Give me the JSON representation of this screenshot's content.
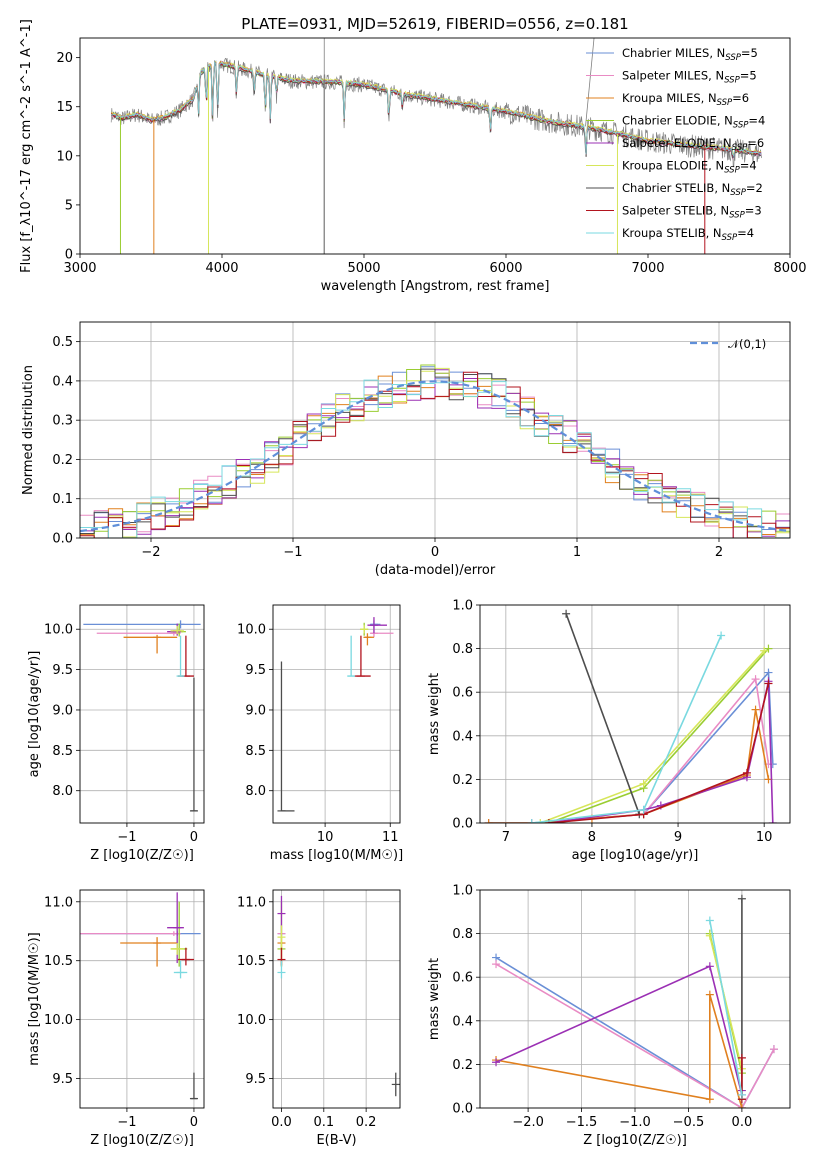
{
  "title": "PLATE=0931, MJD=52619, FIBERID=0556, z=0.181",
  "colors": {
    "Chabrier MILES": "#6a8fd6",
    "Salpeter MILES": "#e98bc4",
    "Kroupa MILES": "#e0801f",
    "Chabrier ELODIE": "#9acd32",
    "Salpeter ELODIE": "#9b30b4",
    "Kroupa ELODIE": "#d6e65a",
    "Chabrier STELIB": "#4d4d4d",
    "Salpeter STELIB": "#b2141e",
    "Kroupa STELIB": "#7ad9e0",
    "normal": "#5f8fd9",
    "data": "#808080"
  },
  "chart_data": [
    {
      "id": "spectrum",
      "type": "line",
      "xlabel": "wavelength [Angstrom, rest frame]",
      "ylabel": "Flux [f_λ10^-17 erg cm^-2 s^-1 A^-1]",
      "xlim": [
        3000,
        8000
      ],
      "ylim": [
        0,
        22
      ],
      "xticks": [
        3000,
        4000,
        5000,
        6000,
        7000,
        8000
      ],
      "yticks": [
        0,
        5,
        10,
        15,
        20
      ],
      "grid": false,
      "legend": "upper right",
      "legend_entries": [
        {
          "name": "Chabrier MILES",
          "ssp": "5"
        },
        {
          "name": "Salpeter MILES",
          "ssp": "5"
        },
        {
          "name": "Kroupa MILES",
          "ssp": "6"
        },
        {
          "name": "Chabrier ELODIE",
          "ssp": "4"
        },
        {
          "name": "Salpeter ELODIE",
          "ssp": "6"
        },
        {
          "name": "Kroupa ELODIE",
          "ssp": "4"
        },
        {
          "name": "Chabrier STELIB",
          "ssp": "2"
        },
        {
          "name": "Salpeter STELIB",
          "ssp": "3"
        },
        {
          "name": "Kroupa STELIB",
          "ssp": "4"
        }
      ],
      "continuum": {
        "x": [
          3220,
          3300,
          3400,
          3500,
          3600,
          3700,
          3800,
          3850,
          3950,
          4100,
          4300,
          4500,
          4800,
          5000,
          5300,
          5600,
          6000,
          6300,
          6600,
          6800,
          7000,
          7300,
          7600,
          7800
        ],
        "y": [
          14.2,
          13.8,
          14.2,
          13.6,
          13.9,
          14.6,
          15.8,
          18.5,
          19.5,
          19.0,
          18.2,
          17.6,
          17.5,
          17.2,
          16.2,
          15.5,
          14.5,
          13.5,
          12.8,
          12.2,
          11.5,
          11.0,
          10.6,
          10.2
        ]
      }
    },
    {
      "id": "residuals",
      "type": "histogram",
      "xlabel": "(data-model)/error",
      "ylabel": "Normed distribution",
      "xlim": [
        -2.5,
        2.5
      ],
      "ylim": [
        0,
        0.55
      ],
      "xticks": [
        -2,
        -1,
        0,
        1,
        2
      ],
      "yticks": [
        0.0,
        0.1,
        0.2,
        0.3,
        0.4,
        0.5
      ],
      "grid": true,
      "legend": "upper right",
      "normal_label": "𝒩(0,1)"
    },
    {
      "id": "age-vs-Z",
      "type": "scatter",
      "xlabel": "Z [log10(Z/Z☉)]",
      "ylabel": "age  [log10(age/yr)]",
      "xlim": [
        -1.7,
        0.15
      ],
      "ylim": [
        7.6,
        10.3
      ],
      "xticks": [
        -1,
        0
      ],
      "yticks": [
        8.0,
        8.5,
        9.0,
        9.5,
        10.0
      ],
      "grid": true,
      "points": [
        {
          "model": "Chabrier MILES",
          "x": -0.2,
          "y": 10.06,
          "xerr": [
            1.45,
            0.3
          ],
          "yerr": [
            0.05,
            0.05
          ]
        },
        {
          "model": "Salpeter MILES",
          "x": -0.3,
          "y": 9.95,
          "xerr": [
            1.15,
            0.1
          ],
          "yerr": [
            0.03,
            0.04
          ]
        },
        {
          "model": "Kroupa MILES",
          "x": -0.55,
          "y": 9.9,
          "xerr": [
            0.5,
            0.3
          ],
          "yerr": [
            0.2,
            0.03
          ]
        },
        {
          "model": "Chabrier ELODIE",
          "x": -0.22,
          "y": 9.97,
          "xerr": [
            0.12,
            0.1
          ],
          "yerr": [
            0.06,
            0.1
          ]
        },
        {
          "model": "Salpeter ELODIE",
          "x": -0.25,
          "y": 9.97,
          "xerr": [
            0.15,
            0.05
          ],
          "yerr": [
            0.05,
            0.1
          ]
        },
        {
          "model": "Kroupa ELODIE",
          "x": -0.25,
          "y": 9.98,
          "xerr": [
            0.1,
            0.1
          ],
          "yerr": [
            0.04,
            0.06
          ]
        },
        {
          "model": "Chabrier STELIB",
          "x": 0.0,
          "y": 7.75,
          "xerr": [
            0.05,
            0.05
          ],
          "yerr": [
            0.0,
            1.65
          ]
        },
        {
          "model": "Salpeter STELIB",
          "x": -0.12,
          "y": 9.42,
          "xerr": [
            0.12,
            0.12
          ],
          "yerr": [
            0.0,
            0.5
          ]
        },
        {
          "model": "Kroupa STELIB",
          "x": -0.2,
          "y": 9.42,
          "xerr": [
            0.04,
            0.04
          ],
          "yerr": [
            0.0,
            0.5
          ]
        }
      ]
    },
    {
      "id": "age-vs-mass",
      "type": "scatter",
      "xlabel": "mass [log10(M/M☉)]",
      "ylabel": "",
      "xlim": [
        9.2,
        11.15
      ],
      "ylim": [
        7.6,
        10.3
      ],
      "xticks": [
        10,
        11
      ],
      "yticks": [
        8.0,
        8.5,
        9.0,
        9.5,
        10.0
      ],
      "grid": true,
      "points": [
        {
          "model": "Chabrier MILES",
          "x": 10.75,
          "y": 10.06,
          "xerr": [
            0.05,
            0.1
          ],
          "yerr": [
            0.05,
            0.05
          ]
        },
        {
          "model": "Salpeter MILES",
          "x": 10.75,
          "y": 9.95,
          "xerr": [
            0.05,
            0.3
          ],
          "yerr": [
            0.05,
            0.05
          ]
        },
        {
          "model": "Kroupa MILES",
          "x": 10.65,
          "y": 9.9,
          "xerr": [
            0.05,
            0.1
          ],
          "yerr": [
            0.1,
            0.05
          ]
        },
        {
          "model": "Chabrier ELODIE",
          "x": 10.6,
          "y": 10.0,
          "xerr": [
            0.05,
            0.05
          ],
          "yerr": [
            0.08,
            0.08
          ]
        },
        {
          "model": "Salpeter ELODIE",
          "x": 10.75,
          "y": 10.05,
          "xerr": [
            0.1,
            0.2
          ],
          "yerr": [
            0.1,
            0.1
          ]
        },
        {
          "model": "Kroupa ELODIE",
          "x": 10.6,
          "y": 10.0,
          "xerr": [
            0.05,
            0.05
          ],
          "yerr": [
            0.05,
            0.05
          ]
        },
        {
          "model": "Chabrier STELIB",
          "x": 9.33,
          "y": 7.75,
          "xerr": [
            0.0,
            0.2
          ],
          "yerr": [
            0.0,
            1.85
          ]
        },
        {
          "model": "Salpeter STELIB",
          "x": 10.55,
          "y": 9.42,
          "xerr": [
            0.1,
            0.15
          ],
          "yerr": [
            0.0,
            0.5
          ]
        },
        {
          "model": "Kroupa STELIB",
          "x": 10.4,
          "y": 9.42,
          "xerr": [
            0.05,
            0.05
          ],
          "yerr": [
            0.0,
            0.5
          ]
        }
      ]
    },
    {
      "id": "weight-vs-age",
      "type": "line",
      "xlabel": "age  [log10(age/yr)]",
      "ylabel": "mass weight",
      "xlim": [
        6.7,
        10.3
      ],
      "ylim": [
        0.0,
        1.0
      ],
      "xticks": [
        7,
        8,
        9,
        10
      ],
      "yticks": [
        0.0,
        0.2,
        0.4,
        0.6,
        0.8,
        1.0
      ],
      "grid": true,
      "series": [
        {
          "model": "Chabrier MILES",
          "x": [
            6.8,
            7.3,
            8.6,
            10.05,
            10.1
          ],
          "y": [
            0.0,
            0.0,
            0.04,
            0.69,
            0.27
          ]
        },
        {
          "model": "Salpeter MILES",
          "x": [
            6.8,
            7.3,
            8.6,
            9.9,
            10.05
          ],
          "y": [
            0.0,
            0.0,
            0.04,
            0.66,
            0.27
          ]
        },
        {
          "model": "Kroupa MILES",
          "x": [
            6.8,
            7.5,
            8.0,
            8.6,
            9.8,
            9.9,
            10.05
          ],
          "y": [
            0.0,
            0.0,
            0.02,
            0.04,
            0.22,
            0.52,
            0.2
          ]
        },
        {
          "model": "Chabrier ELODIE",
          "x": [
            7.5,
            8.6,
            10.05
          ],
          "y": [
            0.0,
            0.16,
            0.8
          ]
        },
        {
          "model": "Salpeter ELODIE",
          "x": [
            7.5,
            8.6,
            8.8,
            9.8,
            10.05,
            10.1
          ],
          "y": [
            0.0,
            0.06,
            0.08,
            0.21,
            0.65,
            0.0
          ]
        },
        {
          "model": "Kroupa ELODIE",
          "x": [
            7.4,
            8.6,
            10.0
          ],
          "y": [
            0.0,
            0.18,
            0.79
          ]
        },
        {
          "model": "Chabrier STELIB",
          "x": [
            7.7,
            8.55
          ],
          "y": [
            0.96,
            0.04
          ]
        },
        {
          "model": "Salpeter STELIB",
          "x": [
            7.5,
            8.6,
            9.8,
            10.05
          ],
          "y": [
            0.0,
            0.04,
            0.23,
            0.64
          ]
        },
        {
          "model": "Kroupa STELIB",
          "x": [
            7.3,
            8.6,
            9.5
          ],
          "y": [
            0.0,
            0.06,
            0.86
          ]
        }
      ]
    },
    {
      "id": "mass-vs-Z",
      "type": "scatter",
      "xlabel": "Z [log10(Z/Z☉)]",
      "ylabel": "mass [log10(M/M☉)]",
      "xlim": [
        -1.7,
        0.15
      ],
      "ylim": [
        9.25,
        11.1
      ],
      "xticks": [
        -1,
        0
      ],
      "yticks": [
        9.5,
        10.0,
        10.5,
        11.0
      ],
      "grid": true,
      "points": [
        {
          "model": "Chabrier MILES",
          "x": -0.25,
          "y": 10.73,
          "xerr": [
            1.45,
            0.35
          ],
          "yerr": [
            0.02,
            0.02
          ]
        },
        {
          "model": "Salpeter MILES",
          "x": -0.3,
          "y": 10.73,
          "xerr": [
            1.4,
            0.1
          ],
          "yerr": [
            0.02,
            0.02
          ]
        },
        {
          "model": "Kroupa MILES",
          "x": -0.55,
          "y": 10.65,
          "xerr": [
            0.55,
            0.3
          ],
          "yerr": [
            0.2,
            0.05
          ]
        },
        {
          "model": "Chabrier ELODIE",
          "x": -0.22,
          "y": 10.6,
          "xerr": [
            0.12,
            0.12
          ],
          "yerr": [
            0.15,
            0.4
          ]
        },
        {
          "model": "Salpeter ELODIE",
          "x": -0.25,
          "y": 10.78,
          "xerr": [
            0.15,
            0.1
          ],
          "yerr": [
            0.3,
            0.3
          ]
        },
        {
          "model": "Kroupa ELODIE",
          "x": -0.25,
          "y": 10.6,
          "xerr": [
            0.1,
            0.1
          ],
          "yerr": [
            0.05,
            0.05
          ]
        },
        {
          "model": "Chabrier STELIB",
          "x": 0.0,
          "y": 9.33,
          "xerr": [
            0.05,
            0.05
          ],
          "yerr": [
            0.0,
            0.22
          ]
        },
        {
          "model": "Salpeter STELIB",
          "x": -0.12,
          "y": 10.51,
          "xerr": [
            0.12,
            0.12
          ],
          "yerr": [
            0.05,
            0.1
          ]
        },
        {
          "model": "Kroupa STELIB",
          "x": -0.2,
          "y": 10.4,
          "xerr": [
            0.1,
            0.1
          ],
          "yerr": [
            0.05,
            0.1
          ]
        }
      ]
    },
    {
      "id": "mass-vs-EBV",
      "type": "scatter",
      "xlabel": "E(B-V)",
      "ylabel": "",
      "xlim": [
        -0.02,
        0.28
      ],
      "ylim": [
        9.25,
        11.1
      ],
      "xticks": [
        0.0,
        0.1,
        0.2
      ],
      "yticks": [
        9.5,
        10.0,
        10.5,
        11.0
      ],
      "grid": true,
      "points": [
        {
          "model": "Chabrier MILES",
          "x": 0.0,
          "y": 10.73,
          "yerr": [
            0.02,
            0.02
          ]
        },
        {
          "model": "Salpeter MILES",
          "x": 0.0,
          "y": 10.73,
          "yerr": [
            0.02,
            0.02
          ]
        },
        {
          "model": "Kroupa MILES",
          "x": 0.0,
          "y": 10.65,
          "yerr": [
            0.2,
            0.05
          ]
        },
        {
          "model": "Chabrier ELODIE",
          "x": 0.0,
          "y": 10.6,
          "yerr": [
            0.15,
            0.4
          ]
        },
        {
          "model": "Salpeter ELODIE",
          "x": 0.0,
          "y": 10.9,
          "yerr": [
            0.15,
            0.15
          ]
        },
        {
          "model": "Kroupa ELODIE",
          "x": 0.0,
          "y": 10.7,
          "yerr": [
            0.1,
            0.1
          ]
        },
        {
          "model": "Chabrier STELIB",
          "x": 0.27,
          "y": 9.45,
          "yerr": [
            0.1,
            0.1
          ]
        },
        {
          "model": "Salpeter STELIB",
          "x": 0.0,
          "y": 10.51,
          "yerr": [
            0.05,
            0.1
          ]
        },
        {
          "model": "Kroupa STELIB",
          "x": 0.0,
          "y": 10.4,
          "yerr": [
            0.05,
            0.1
          ]
        }
      ]
    },
    {
      "id": "weight-vs-Z",
      "type": "line",
      "xlabel": "Z [log10(Z/Z☉)]",
      "ylabel": "mass weight",
      "xlim": [
        -2.45,
        0.45
      ],
      "ylim": [
        0.0,
        1.0
      ],
      "xticks": [
        -2.0,
        -1.5,
        -1.0,
        -0.5,
        0.0
      ],
      "yticks": [
        0.0,
        0.2,
        0.4,
        0.6,
        0.8,
        1.0
      ],
      "grid": true,
      "series": [
        {
          "model": "Chabrier MILES",
          "x": [
            -2.3,
            0.0,
            0.3
          ],
          "y": [
            0.69,
            0.0,
            0.27
          ]
        },
        {
          "model": "Salpeter MILES",
          "x": [
            -2.3,
            0.0,
            0.3
          ],
          "y": [
            0.66,
            0.0,
            0.27
          ]
        },
        {
          "model": "Kroupa MILES",
          "x": [
            -2.3,
            -0.3,
            -0.3,
            0.0
          ],
          "y": [
            0.22,
            0.04,
            0.52,
            0.0
          ]
        },
        {
          "model": "Chabrier ELODIE",
          "x": [
            -0.3,
            0.0
          ],
          "y": [
            0.8,
            0.16
          ]
        },
        {
          "model": "Salpeter ELODIE",
          "x": [
            -2.3,
            -0.3,
            0.0,
            0.0
          ],
          "y": [
            0.21,
            0.65,
            0.06,
            0.08
          ]
        },
        {
          "model": "Kroupa ELODIE",
          "x": [
            -0.3,
            0.0
          ],
          "y": [
            0.79,
            0.18
          ]
        },
        {
          "model": "Chabrier STELIB",
          "x": [
            0.0,
            0.0
          ],
          "y": [
            0.96,
            0.04
          ]
        },
        {
          "model": "Salpeter STELIB",
          "x": [
            0.0,
            0.0
          ],
          "y": [
            0.04,
            0.23
          ]
        },
        {
          "model": "Kroupa STELIB",
          "x": [
            -0.3,
            0.0
          ],
          "y": [
            0.86,
            0.06
          ]
        }
      ]
    }
  ]
}
